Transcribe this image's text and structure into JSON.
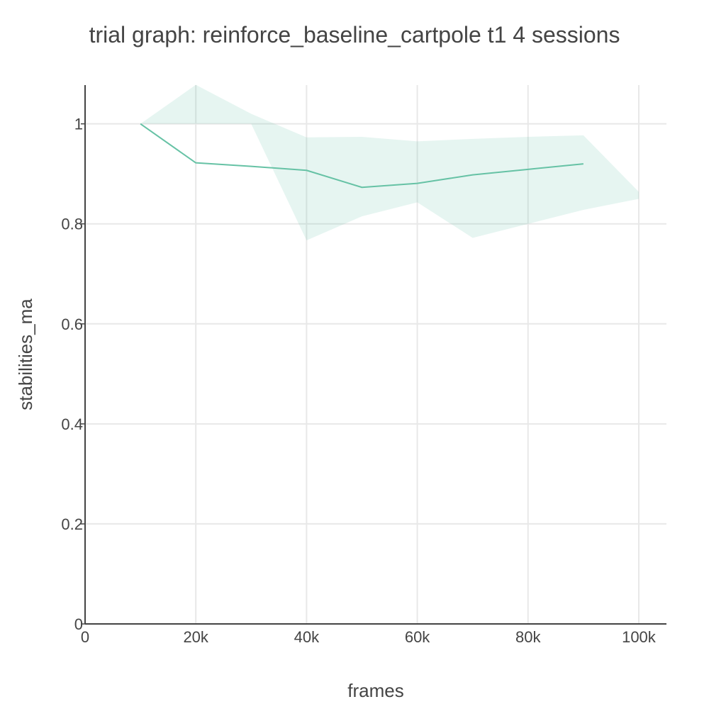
{
  "chart_data": {
    "type": "line",
    "title": "trial graph: reinforce_baseline_cartpole t1 4 sessions",
    "xlabel": "frames",
    "ylabel": "stabilities_ma",
    "xlim": [
      0,
      105000
    ],
    "ylim": [
      0,
      1.0775
    ],
    "x_ticks": [
      {
        "value": 0,
        "label": "0"
      },
      {
        "value": 20000,
        "label": "20k"
      },
      {
        "value": 40000,
        "label": "40k"
      },
      {
        "value": 60000,
        "label": "60k"
      },
      {
        "value": 80000,
        "label": "80k"
      },
      {
        "value": 100000,
        "label": "100k"
      }
    ],
    "y_ticks": [
      {
        "value": 0,
        "label": "0"
      },
      {
        "value": 0.2,
        "label": "0.2"
      },
      {
        "value": 0.4,
        "label": "0.4"
      },
      {
        "value": 0.6,
        "label": "0.6"
      },
      {
        "value": 0.8,
        "label": "0.8"
      },
      {
        "value": 1,
        "label": "1"
      }
    ],
    "grid": true,
    "legend": "none",
    "series": [
      {
        "color": "#66c2a5",
        "x": [
          10000,
          20000,
          30000,
          40000,
          50000,
          60000,
          70000,
          80000,
          90000
        ],
        "values": [
          1.0,
          0.922,
          0.915,
          0.907,
          0.873,
          0.881,
          0.898,
          0.909,
          0.92
        ]
      }
    ],
    "band": {
      "color": "#66c2a5",
      "opacity": 0.16,
      "x": [
        10000,
        20000,
        30000,
        40000,
        50000,
        60000,
        70000,
        80000,
        90000,
        100000
      ],
      "upper": [
        1.0,
        1.078,
        1.02,
        0.973,
        0.974,
        0.965,
        0.97,
        0.974,
        0.977,
        0.864
      ],
      "lower": [
        1.0,
        1.0,
        1.0,
        0.767,
        0.815,
        0.843,
        0.772,
        0.8,
        0.828,
        0.85
      ]
    }
  }
}
